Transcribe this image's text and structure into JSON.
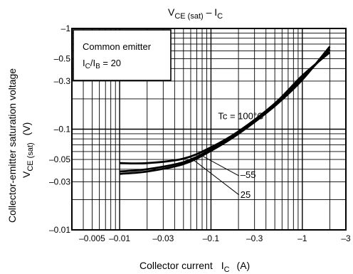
{
  "chart_data": {
    "type": "line",
    "title_main": "V",
    "title_sub1": "CE (sat)",
    "title_mid": " – I",
    "title_sub2": "C",
    "x_scale": "log",
    "y_scale": "log",
    "xlim": [
      0.003,
      3
    ],
    "ylim": [
      0.01,
      1
    ],
    "grid": true,
    "x_ticks": [
      {
        "value": 0.005,
        "label": "–0.005"
      },
      {
        "value": 0.01,
        "label": "–0.01"
      },
      {
        "value": 0.03,
        "label": "–0.03"
      },
      {
        "value": 0.1,
        "label": "–0.1"
      },
      {
        "value": 0.3,
        "label": "–0.3"
      },
      {
        "value": 1,
        "label": "–1"
      },
      {
        "value": 3,
        "label": "–3"
      }
    ],
    "y_ticks": [
      {
        "value": 1,
        "label": "–1"
      },
      {
        "value": 0.5,
        "label": "–0.5"
      },
      {
        "value": 0.3,
        "label": "–0.3"
      },
      {
        "value": 0.1,
        "label": "–0.1"
      },
      {
        "value": 0.05,
        "label": "–0.05"
      },
      {
        "value": 0.03,
        "label": "–0.03"
      },
      {
        "value": 0.01,
        "label": "–0.01"
      }
    ],
    "xlabel_main": "Collector current",
    "xlabel_sym": "I",
    "xlabel_sub": "C",
    "xlabel_unit": "(A)",
    "ylabel_line1": "Collector-emitter saturation voltage",
    "ylabel_sym": "V",
    "ylabel_sub": "CE (sat)",
    "ylabel_unit": "(V)",
    "legend": {
      "line1": "Common emitter",
      "line2_sym": "I",
      "line2_sub1": "C",
      "line2_mid": "/I",
      "line2_sub2": "B",
      "line2_val": " = 20"
    },
    "series": [
      {
        "name": "Tc = 100°C",
        "x": [
          0.01,
          0.02,
          0.05,
          0.1,
          0.2,
          0.5,
          1,
          2
        ],
        "y": [
          0.046,
          0.046,
          0.051,
          0.066,
          0.095,
          0.18,
          0.34,
          0.58
        ]
      },
      {
        "name": "25",
        "x": [
          0.01,
          0.02,
          0.05,
          0.1,
          0.2,
          0.5,
          1,
          2
        ],
        "y": [
          0.038,
          0.04,
          0.047,
          0.063,
          0.092,
          0.175,
          0.32,
          0.62
        ]
      },
      {
        "name": "–55",
        "x": [
          0.01,
          0.02,
          0.05,
          0.1,
          0.2,
          0.5,
          1,
          2
        ],
        "y": [
          0.036,
          0.038,
          0.045,
          0.061,
          0.09,
          0.17,
          0.31,
          0.66
        ]
      }
    ],
    "annotations": [
      {
        "text": "Tc = 100°C",
        "x": 0.22,
        "y": 0.11
      },
      {
        "text": "–55",
        "x": 0.21,
        "y": 0.035
      },
      {
        "text": "25",
        "x": 0.21,
        "y": 0.023
      }
    ]
  }
}
